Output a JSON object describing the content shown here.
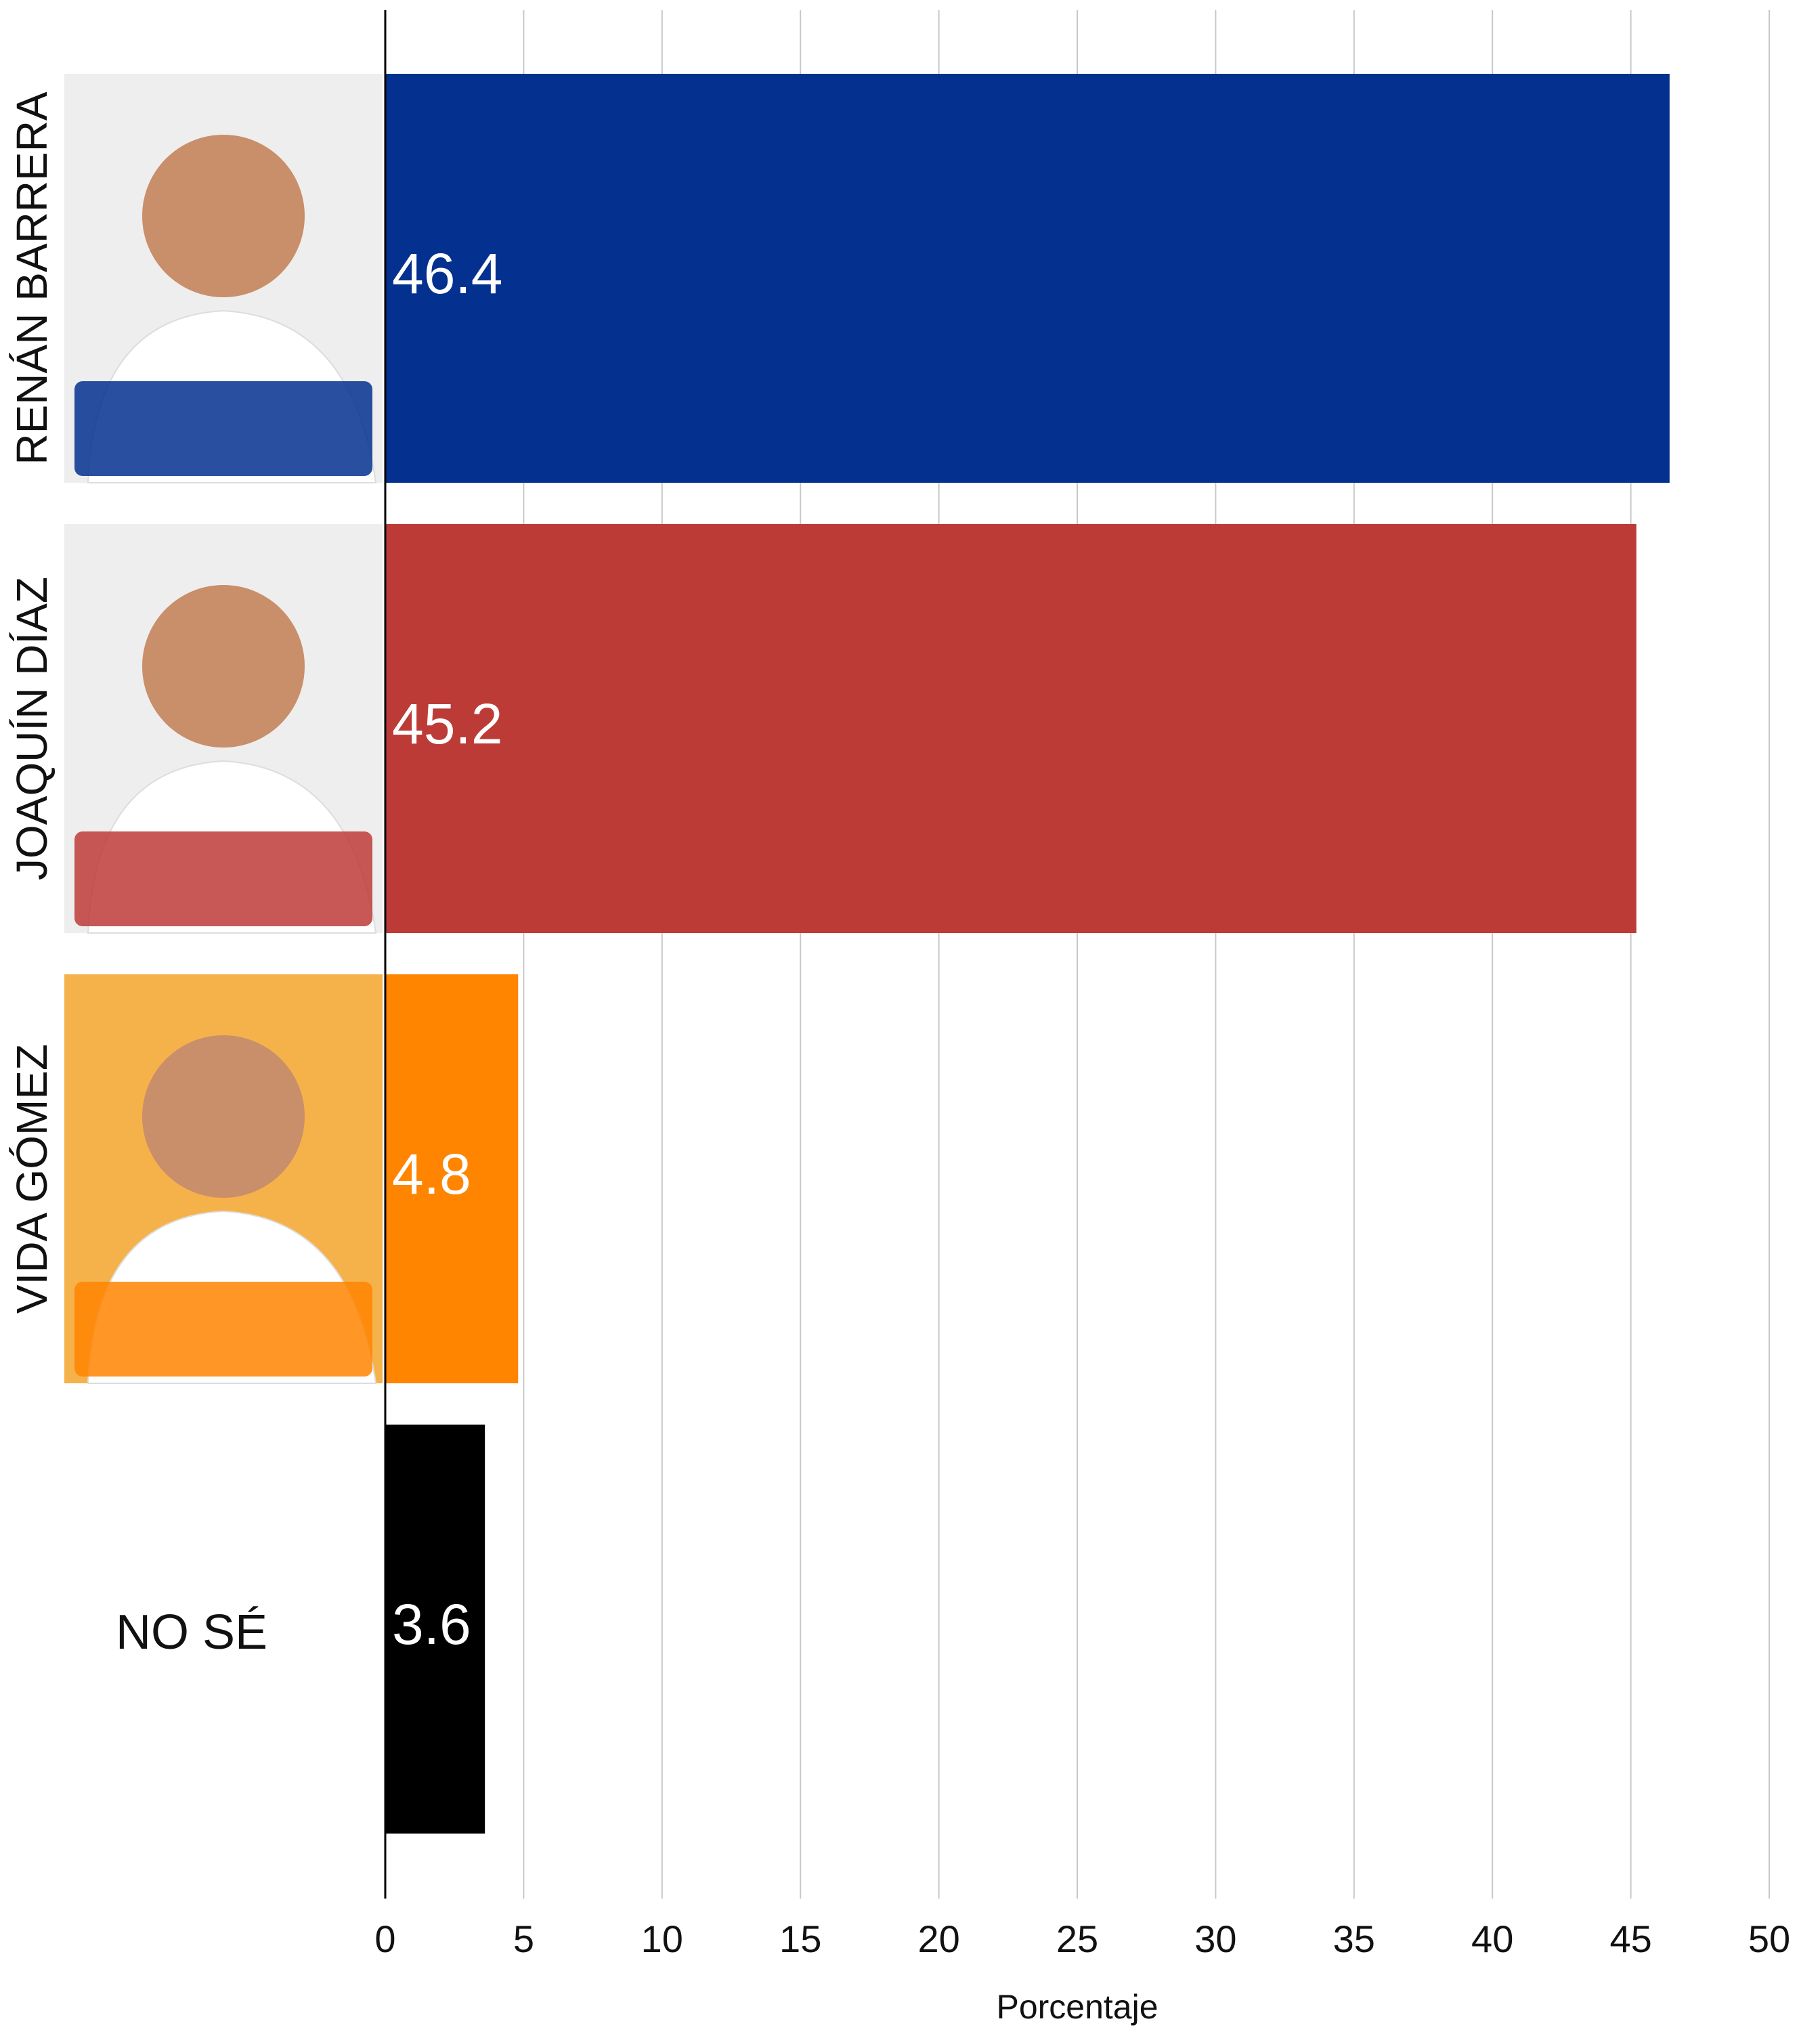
{
  "chart_data": {
    "type": "barh",
    "categories": [
      "RENÁN BARRERA",
      "JOAQUÍN DÍAZ",
      "VIDA GÓMEZ",
      "NO SÉ"
    ],
    "values": [
      46.4,
      45.2,
      4.8,
      3.6
    ],
    "colors": [
      "#04318f",
      "#bd3b37",
      "#ff8400",
      "#000000"
    ],
    "xlabel": "Porcentaje",
    "xlim": [
      0,
      50
    ],
    "xticks": [
      0,
      5,
      10,
      15,
      20,
      25,
      30,
      35,
      40,
      45,
      50
    ],
    "grid": true
  }
}
